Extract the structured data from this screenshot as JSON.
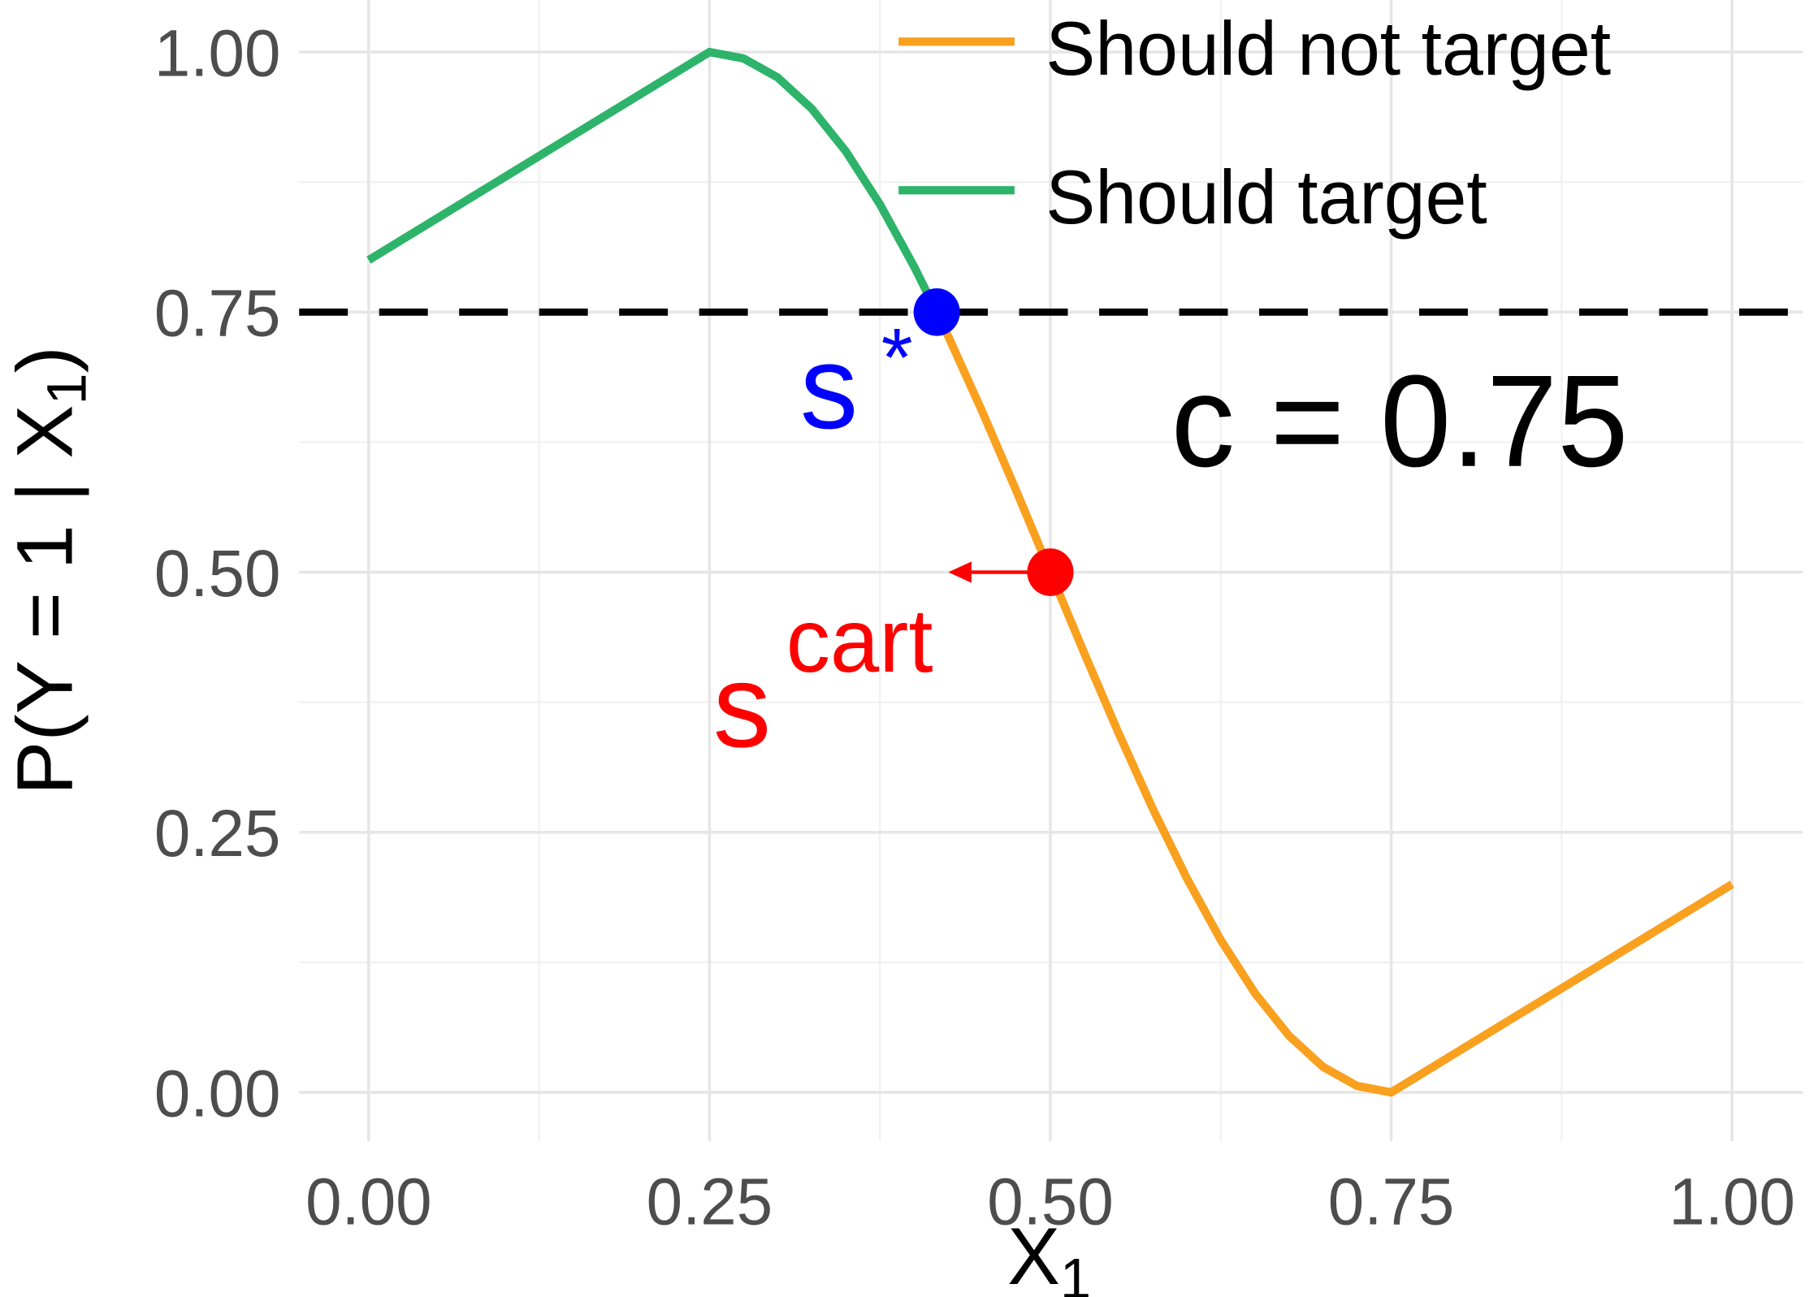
{
  "chart_data": {
    "type": "line",
    "xlabel": {
      "text": "X",
      "sub": "1"
    },
    "ylabel": {
      "text": "P(Y = 1 | X",
      "sub": "1",
      "end": ")"
    },
    "xlim": [
      -0.051,
      1.052
    ],
    "ylim": [
      -0.047,
      1.05
    ],
    "xticks": [
      {
        "value": 0,
        "label": "0.00"
      },
      {
        "value": 0.25,
        "label": "0.25"
      },
      {
        "value": 0.5,
        "label": "0.50"
      },
      {
        "value": 0.75,
        "label": "0.75"
      },
      {
        "value": 1,
        "label": "1.00"
      }
    ],
    "yticks": [
      {
        "value": 0,
        "label": "0.00"
      },
      {
        "value": 0.25,
        "label": "0.25"
      },
      {
        "value": 0.5,
        "label": "0.50"
      },
      {
        "value": 0.75,
        "label": "0.75"
      },
      {
        "value": 1,
        "label": "1.00"
      }
    ],
    "xminor": [
      0.125,
      0.375,
      0.625,
      0.875
    ],
    "yminor": [
      0.125,
      0.375,
      0.625,
      0.875
    ],
    "grid": true,
    "legend": "top-right",
    "series": [
      {
        "name": "Should not target",
        "color": "#f9a01e",
        "x": [
          0.4167,
          0.425,
          0.45,
          0.475,
          0.5,
          0.525,
          0.55,
          0.575,
          0.6,
          0.625,
          0.65,
          0.675,
          0.7,
          0.725,
          0.75,
          1
        ],
        "values": [
          0.75,
          0.727,
          0.6545,
          0.5782,
          0.5,
          0.4218,
          0.3455,
          0.273,
          0.2061,
          0.1464,
          0.0955,
          0.0545,
          0.0245,
          0.0062,
          0,
          0.2
        ]
      },
      {
        "name": "Should target",
        "color": "#2db46a",
        "x": [
          0,
          0.25,
          0.275,
          0.3,
          0.325,
          0.35,
          0.375,
          0.4,
          0.4167
        ],
        "values": [
          0.8,
          1,
          0.9938,
          0.9755,
          0.9455,
          0.9045,
          0.8536,
          0.7939,
          0.75
        ]
      }
    ],
    "hline": 0.75,
    "markers": [
      {
        "x": 0.4167,
        "y": 0.75,
        "color": "#0000ff",
        "label": "s",
        "sup": "*"
      },
      {
        "x": 0.5,
        "y": 0.5,
        "color": "#ff0000",
        "label": "s",
        "sup": "cart"
      }
    ],
    "annotation": "c = 0.75"
  }
}
